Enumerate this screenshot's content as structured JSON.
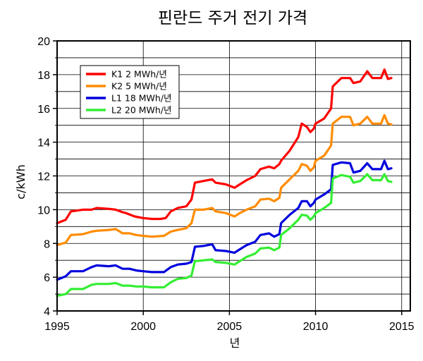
{
  "chart_data": {
    "type": "line",
    "title": "핀란드 주거 전기 가격",
    "xlabel": "년",
    "ylabel": "c/kWh",
    "xlim": [
      1995,
      2015.5
    ],
    "ylim": [
      4,
      20
    ],
    "xticks": [
      1995,
      2000,
      2005,
      2010,
      2015
    ],
    "yticks": [
      4,
      6,
      8,
      10,
      12,
      14,
      16,
      18,
      20
    ],
    "grid": true,
    "legend_position": "top-left",
    "series": [
      {
        "name": "K1 2 MWh/년",
        "color": "#ff0000",
        "points": [
          [
            1995.0,
            9.2
          ],
          [
            1995.5,
            9.4
          ],
          [
            1995.8,
            9.9
          ],
          [
            1996.5,
            10.0
          ],
          [
            1997.0,
            10.0
          ],
          [
            1997.3,
            10.1
          ],
          [
            1998.0,
            10.05
          ],
          [
            1998.4,
            10.0
          ],
          [
            1998.8,
            9.85
          ],
          [
            1999.0,
            9.8
          ],
          [
            1999.5,
            9.6
          ],
          [
            2000.0,
            9.5
          ],
          [
            2000.5,
            9.45
          ],
          [
            2001.0,
            9.45
          ],
          [
            2001.3,
            9.5
          ],
          [
            2001.6,
            9.9
          ],
          [
            2002.0,
            10.1
          ],
          [
            2002.5,
            10.2
          ],
          [
            2002.8,
            10.6
          ],
          [
            2003.0,
            11.6
          ],
          [
            2003.5,
            11.7
          ],
          [
            2004.0,
            11.8
          ],
          [
            2004.2,
            11.6
          ],
          [
            2004.8,
            11.5
          ],
          [
            2005.3,
            11.3
          ],
          [
            2005.6,
            11.5
          ],
          [
            2006.0,
            11.75
          ],
          [
            2006.5,
            12.0
          ],
          [
            2006.8,
            12.4
          ],
          [
            2007.3,
            12.55
          ],
          [
            2007.6,
            12.45
          ],
          [
            2007.9,
            12.7
          ],
          [
            2008.0,
            12.9
          ],
          [
            2008.5,
            13.5
          ],
          [
            2009.0,
            14.3
          ],
          [
            2009.2,
            15.1
          ],
          [
            2009.5,
            14.9
          ],
          [
            2009.7,
            14.6
          ],
          [
            2009.9,
            14.8
          ],
          [
            2010.0,
            15.1
          ],
          [
            2010.5,
            15.4
          ],
          [
            2010.9,
            16.0
          ],
          [
            2011.0,
            17.3
          ],
          [
            2011.5,
            17.8
          ],
          [
            2012.0,
            17.8
          ],
          [
            2012.2,
            17.5
          ],
          [
            2012.6,
            17.6
          ],
          [
            2013.0,
            18.2
          ],
          [
            2013.3,
            17.8
          ],
          [
            2013.8,
            17.8
          ],
          [
            2014.0,
            18.3
          ],
          [
            2014.2,
            17.75
          ],
          [
            2014.4,
            17.8
          ]
        ]
      },
      {
        "name": "K2 5 MWh/년",
        "color": "#ff8c00",
        "points": [
          [
            1995.0,
            7.9
          ],
          [
            1995.5,
            8.05
          ],
          [
            1995.8,
            8.5
          ],
          [
            1996.5,
            8.55
          ],
          [
            1997.0,
            8.7
          ],
          [
            1997.3,
            8.75
          ],
          [
            1998.0,
            8.8
          ],
          [
            1998.4,
            8.85
          ],
          [
            1998.8,
            8.6
          ],
          [
            1999.2,
            8.6
          ],
          [
            1999.6,
            8.5
          ],
          [
            2000.0,
            8.45
          ],
          [
            2000.5,
            8.4
          ],
          [
            2001.2,
            8.45
          ],
          [
            2001.6,
            8.7
          ],
          [
            2002.0,
            8.8
          ],
          [
            2002.5,
            8.9
          ],
          [
            2002.8,
            9.2
          ],
          [
            2003.0,
            10.0
          ],
          [
            2003.5,
            10.0
          ],
          [
            2004.0,
            10.1
          ],
          [
            2004.2,
            9.9
          ],
          [
            2004.8,
            9.8
          ],
          [
            2005.3,
            9.6
          ],
          [
            2005.6,
            9.8
          ],
          [
            2006.0,
            10.0
          ],
          [
            2006.5,
            10.2
          ],
          [
            2006.8,
            10.6
          ],
          [
            2007.3,
            10.65
          ],
          [
            2007.6,
            10.5
          ],
          [
            2007.9,
            10.7
          ],
          [
            2008.0,
            11.3
          ],
          [
            2008.5,
            11.8
          ],
          [
            2009.0,
            12.3
          ],
          [
            2009.2,
            12.7
          ],
          [
            2009.5,
            12.6
          ],
          [
            2009.7,
            12.3
          ],
          [
            2009.9,
            12.5
          ],
          [
            2010.0,
            12.9
          ],
          [
            2010.5,
            13.2
          ],
          [
            2010.9,
            13.8
          ],
          [
            2011.0,
            15.1
          ],
          [
            2011.5,
            15.5
          ],
          [
            2012.0,
            15.5
          ],
          [
            2012.2,
            15.0
          ],
          [
            2012.6,
            15.1
          ],
          [
            2013.0,
            15.5
          ],
          [
            2013.3,
            15.1
          ],
          [
            2013.8,
            15.1
          ],
          [
            2014.0,
            15.6
          ],
          [
            2014.2,
            15.1
          ],
          [
            2014.4,
            15.05
          ]
        ]
      },
      {
        "name": "L1 18 MWh/년",
        "color": "#0000dd",
        "points": [
          [
            1995.0,
            5.85
          ],
          [
            1995.5,
            6.05
          ],
          [
            1995.8,
            6.35
          ],
          [
            1996.5,
            6.35
          ],
          [
            1997.0,
            6.6
          ],
          [
            1997.3,
            6.7
          ],
          [
            1998.0,
            6.65
          ],
          [
            1998.4,
            6.7
          ],
          [
            1998.8,
            6.5
          ],
          [
            1999.2,
            6.5
          ],
          [
            1999.6,
            6.4
          ],
          [
            2000.0,
            6.35
          ],
          [
            2000.5,
            6.3
          ],
          [
            2001.2,
            6.3
          ],
          [
            2001.6,
            6.6
          ],
          [
            2002.0,
            6.75
          ],
          [
            2002.5,
            6.8
          ],
          [
            2002.8,
            6.9
          ],
          [
            2003.0,
            7.8
          ],
          [
            2003.5,
            7.85
          ],
          [
            2004.0,
            7.95
          ],
          [
            2004.2,
            7.6
          ],
          [
            2004.8,
            7.55
          ],
          [
            2005.3,
            7.45
          ],
          [
            2005.6,
            7.65
          ],
          [
            2006.0,
            7.9
          ],
          [
            2006.5,
            8.1
          ],
          [
            2006.8,
            8.5
          ],
          [
            2007.3,
            8.6
          ],
          [
            2007.6,
            8.4
          ],
          [
            2007.9,
            8.55
          ],
          [
            2008.0,
            9.2
          ],
          [
            2008.5,
            9.7
          ],
          [
            2009.0,
            10.1
          ],
          [
            2009.2,
            10.5
          ],
          [
            2009.5,
            10.5
          ],
          [
            2009.7,
            10.2
          ],
          [
            2009.9,
            10.4
          ],
          [
            2010.0,
            10.6
          ],
          [
            2010.5,
            10.9
          ],
          [
            2010.9,
            11.2
          ],
          [
            2011.0,
            12.65
          ],
          [
            2011.5,
            12.8
          ],
          [
            2012.0,
            12.75
          ],
          [
            2012.2,
            12.2
          ],
          [
            2012.6,
            12.3
          ],
          [
            2013.0,
            12.75
          ],
          [
            2013.3,
            12.4
          ],
          [
            2013.8,
            12.4
          ],
          [
            2014.0,
            12.9
          ],
          [
            2014.2,
            12.4
          ],
          [
            2014.4,
            12.45
          ]
        ]
      },
      {
        "name": "L2 20 MWh/년",
        "color": "#33ee33",
        "points": [
          [
            1995.0,
            4.9
          ],
          [
            1995.5,
            5.0
          ],
          [
            1995.8,
            5.3
          ],
          [
            1996.5,
            5.3
          ],
          [
            1997.0,
            5.55
          ],
          [
            1997.3,
            5.6
          ],
          [
            1998.0,
            5.6
          ],
          [
            1998.4,
            5.65
          ],
          [
            1998.8,
            5.5
          ],
          [
            1999.2,
            5.5
          ],
          [
            1999.6,
            5.45
          ],
          [
            2000.0,
            5.45
          ],
          [
            2000.5,
            5.4
          ],
          [
            2001.2,
            5.4
          ],
          [
            2001.6,
            5.7
          ],
          [
            2002.0,
            5.9
          ],
          [
            2002.5,
            5.95
          ],
          [
            2002.8,
            6.1
          ],
          [
            2003.0,
            6.95
          ],
          [
            2003.5,
            7.0
          ],
          [
            2004.0,
            7.05
          ],
          [
            2004.2,
            6.9
          ],
          [
            2004.8,
            6.85
          ],
          [
            2005.3,
            6.75
          ],
          [
            2005.6,
            6.95
          ],
          [
            2006.0,
            7.2
          ],
          [
            2006.5,
            7.4
          ],
          [
            2006.8,
            7.7
          ],
          [
            2007.3,
            7.75
          ],
          [
            2007.6,
            7.6
          ],
          [
            2007.9,
            7.75
          ],
          [
            2008.0,
            8.5
          ],
          [
            2008.5,
            8.9
          ],
          [
            2009.0,
            9.4
          ],
          [
            2009.2,
            9.7
          ],
          [
            2009.5,
            9.65
          ],
          [
            2009.7,
            9.4
          ],
          [
            2009.9,
            9.6
          ],
          [
            2010.0,
            9.8
          ],
          [
            2010.5,
            10.1
          ],
          [
            2010.9,
            10.4
          ],
          [
            2011.0,
            11.85
          ],
          [
            2011.5,
            12.05
          ],
          [
            2012.0,
            11.95
          ],
          [
            2012.2,
            11.6
          ],
          [
            2012.6,
            11.7
          ],
          [
            2013.0,
            12.1
          ],
          [
            2013.3,
            11.75
          ],
          [
            2013.8,
            11.75
          ],
          [
            2014.0,
            12.1
          ],
          [
            2014.2,
            11.7
          ],
          [
            2014.4,
            11.65
          ]
        ]
      }
    ]
  }
}
